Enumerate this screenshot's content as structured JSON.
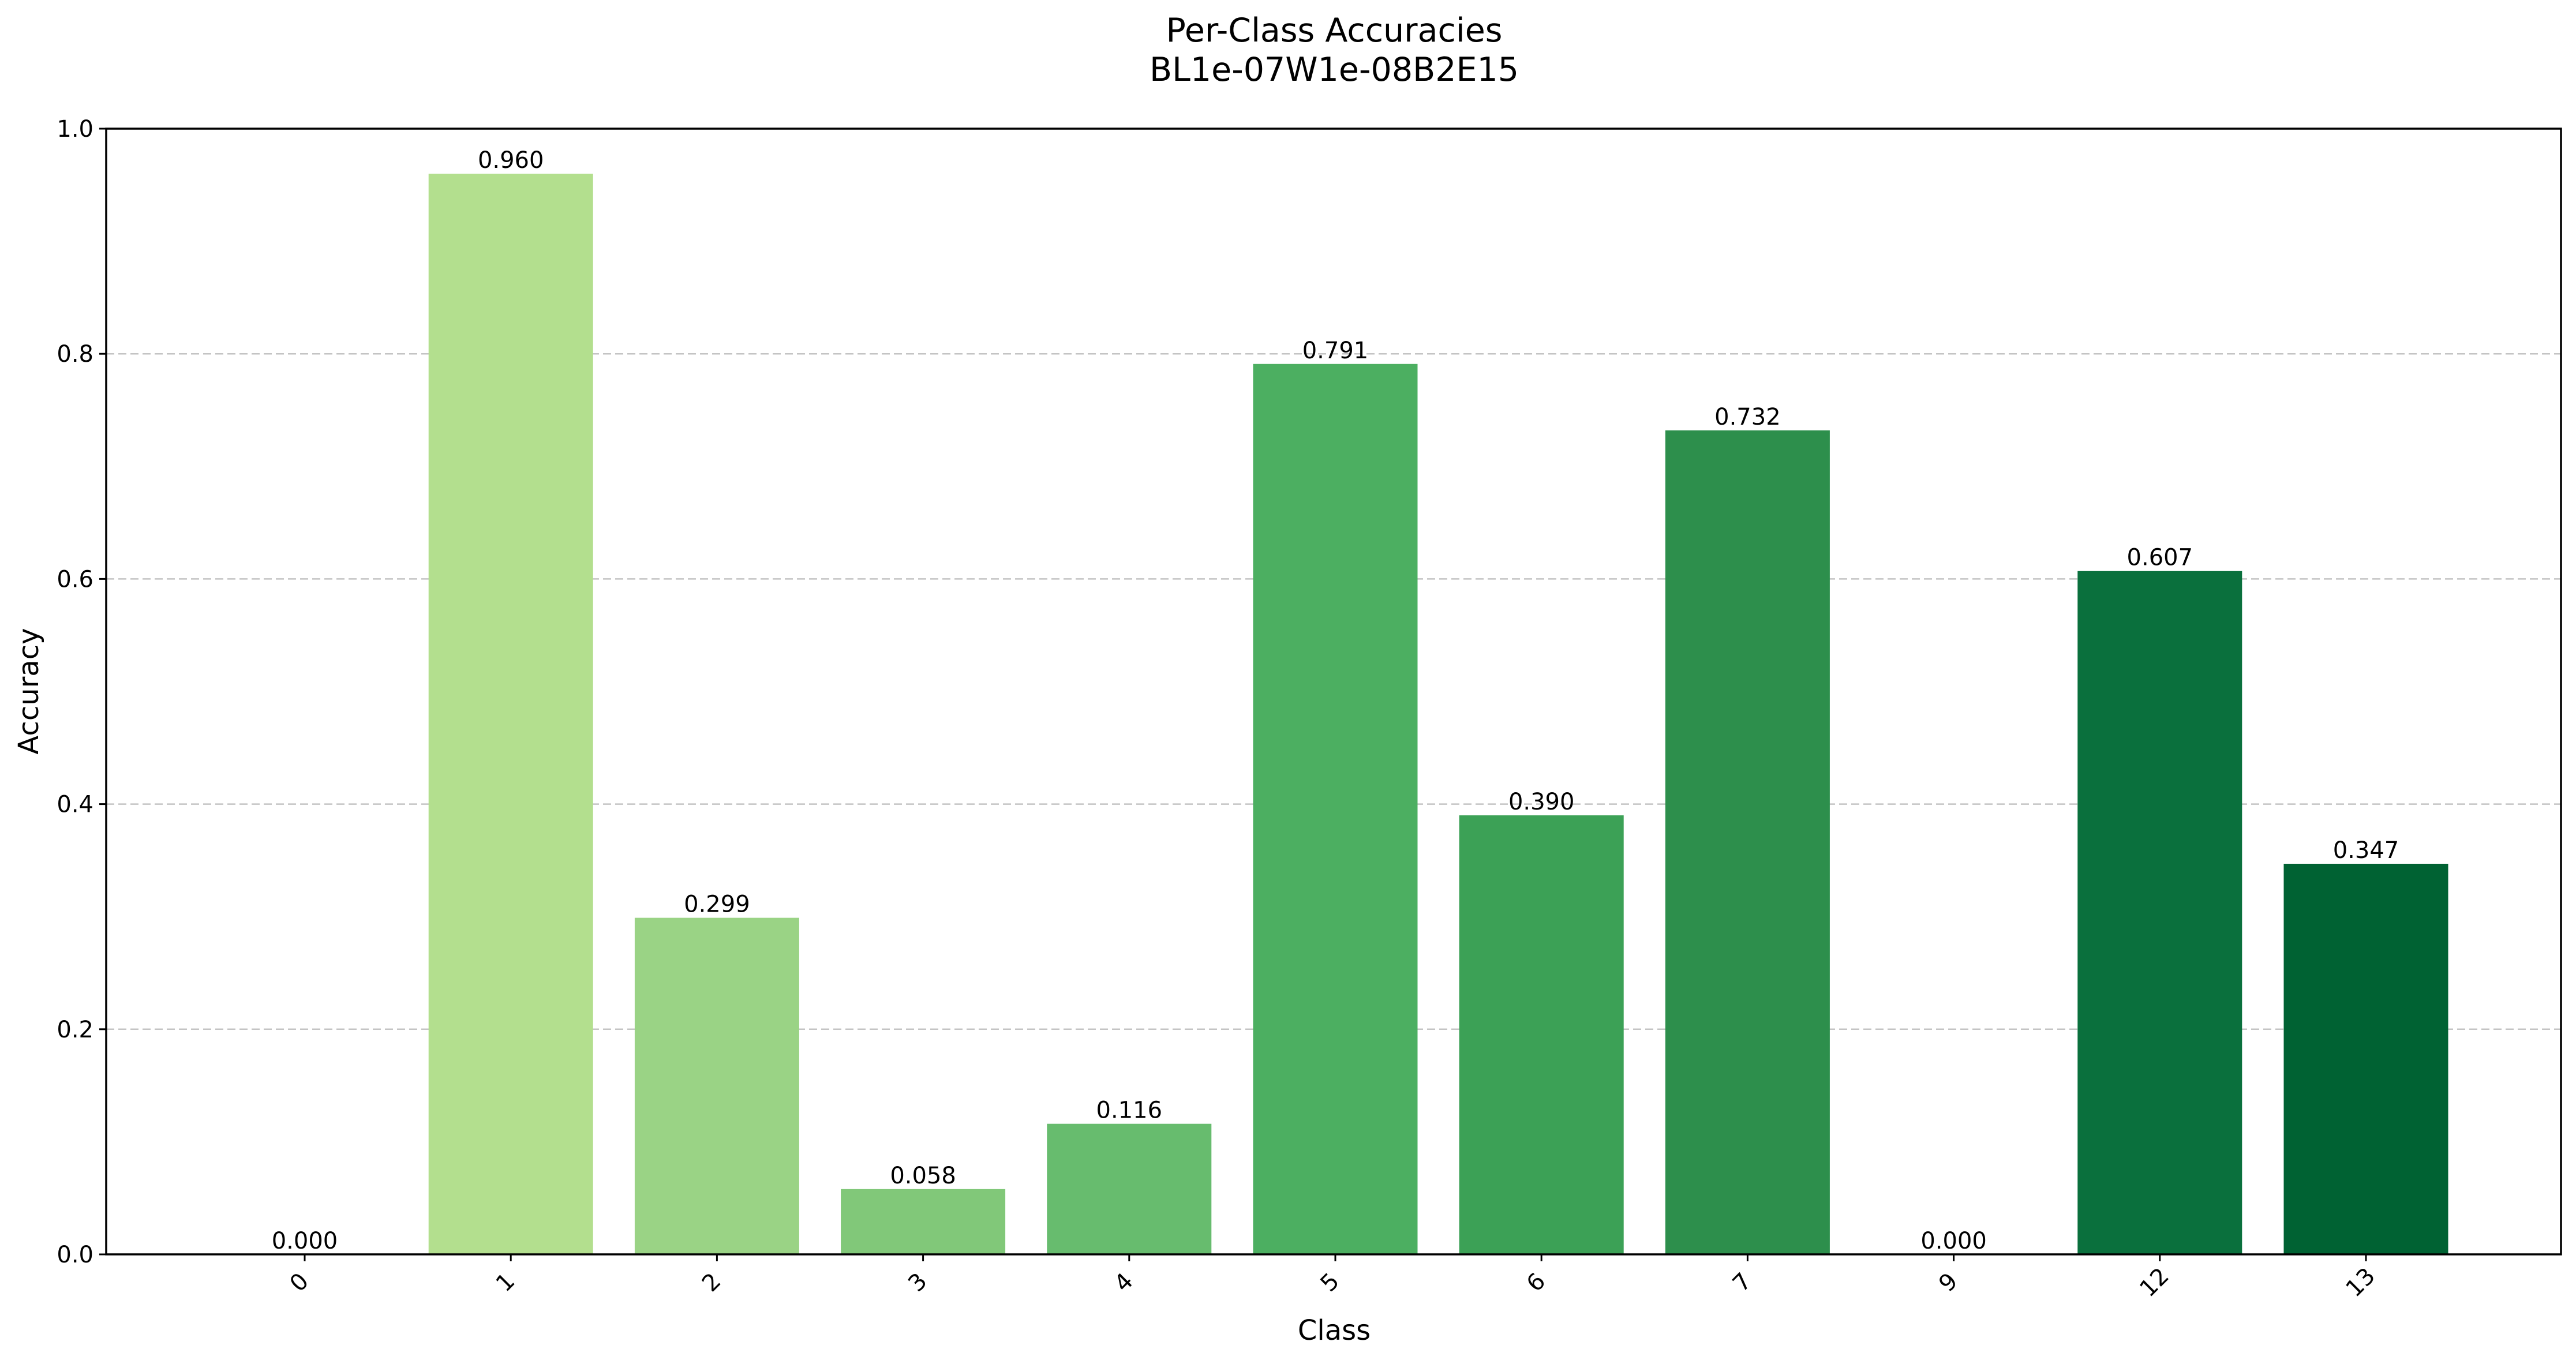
{
  "chart_data": {
    "type": "bar",
    "title": "Per-Class Accuracies",
    "subtitle": "BL1e-07W1e-08B2E15",
    "xlabel": "Class",
    "ylabel": "Accuracy",
    "ylim": [
      0,
      1.0
    ],
    "yticks": [
      "0.0",
      "0.2",
      "0.4",
      "0.6",
      "0.8",
      "1.0"
    ],
    "grid": "y-dashed",
    "categories": [
      "0",
      "1",
      "2",
      "3",
      "4",
      "5",
      "6",
      "7",
      "9",
      "12",
      "13"
    ],
    "values": [
      0.0,
      0.96,
      0.299,
      0.058,
      0.116,
      0.791,
      0.39,
      0.732,
      0.0,
      0.607,
      0.347
    ],
    "value_labels": [
      "0.000",
      "0.960",
      "0.299",
      "0.058",
      "0.116",
      "0.791",
      "0.390",
      "0.732",
      "0.000",
      "0.607",
      "0.347"
    ],
    "colors": [
      "#d9f0a3",
      "#b3df8e",
      "#9ad385",
      "#81c879",
      "#67bc6e",
      "#4caf61",
      "#3ca156",
      "#2d8f4c",
      "#1b7f43",
      "#0a703d",
      "#006233"
    ]
  }
}
